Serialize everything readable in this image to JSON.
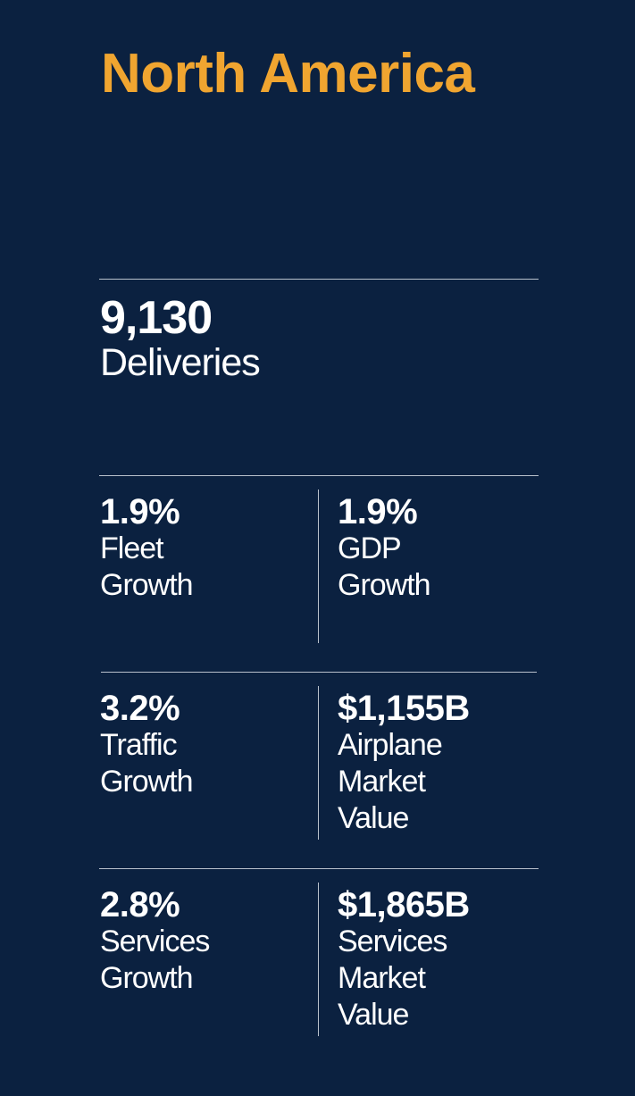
{
  "title": "North America",
  "colors": {
    "background": "#0b2140",
    "accent": "#f0a530",
    "text": "#ffffff",
    "divider": "#b9c1cc"
  },
  "headline": {
    "value": "9,130",
    "label": "Deliveries"
  },
  "stats": {
    "fleet": {
      "value": "1.9%",
      "label": [
        "Fleet",
        "Growth"
      ]
    },
    "gdp": {
      "value": "1.9%",
      "label": [
        "GDP",
        "Growth"
      ]
    },
    "traffic": {
      "value": "3.2%",
      "label": [
        "Traffic",
        "Growth"
      ]
    },
    "airplane": {
      "value": "$1,155B",
      "label": [
        "Airplane",
        "Market",
        "Value"
      ]
    },
    "services_growth": {
      "value": "2.8%",
      "label": [
        "Services",
        "Growth"
      ]
    },
    "services_value": {
      "value": "$1,865B",
      "label": [
        "Services",
        "Market",
        "Value"
      ]
    }
  }
}
